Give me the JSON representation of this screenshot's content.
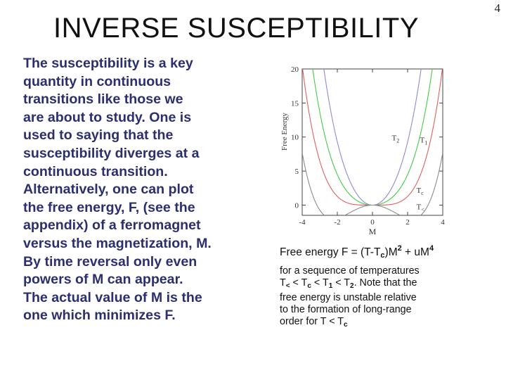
{
  "page_number": "4",
  "title": "INVERSE  SUSCEPTIBILITY",
  "body_lines": [
    "The  susceptibility  is a key",
    "quantity  in continuous",
    "transitions like those we",
    "are about to study.  One is",
    "used to saying  that the",
    "susceptibility  diverges  at a",
    "continuous  transition.",
    "Alternatively, one can plot",
    "the free energy, F, (see the",
    "appendix) of a ferromagnet",
    "versus the magnetization, M.",
    "By time reversal only even",
    "powers of M  can appear.",
    "The actual value of M is the",
    "one which minimizes  F."
  ],
  "caption": {
    "formula_pre": "Free energy F = (T-T",
    "formula_sub": "c",
    "formula_mid": ")M",
    "formula_sup2": "2",
    "formula_mid2": " + uM",
    "formula_sup4": "4",
    "line1": "for a  sequence of temperatures",
    "line2_a": "T",
    "line2_sub_lt": "<",
    "line2_b": " <  T",
    "line2_sub_c": "c",
    "line2_c": " < T",
    "line2_sub_1": "1",
    "line2_d": " < T",
    "line2_sub_2": "2",
    "line2_e": ".  Note that the",
    "line3": "free energy is  unstable  relative",
    "line4": "to the formation of long-range",
    "line5_a": "order for T < T",
    "line5_sub": "c"
  },
  "chart_data": {
    "type": "line",
    "title": "",
    "xlabel": "M",
    "ylabel": "Free  Energy",
    "xlim": [
      -4,
      4
    ],
    "ylim": [
      -1.5,
      20
    ],
    "x_ticks": [
      "-4",
      "-2",
      "0",
      "2",
      "4"
    ],
    "y_ticks": [
      "0",
      "5",
      "10",
      "15",
      "20"
    ],
    "grid": false,
    "series": [
      {
        "name": "T2",
        "color": "#8a8ad8",
        "a": 2.0,
        "u": 0.08
      },
      {
        "name": "T1",
        "color": "#44cc44",
        "a": 0.8,
        "u": 0.08
      },
      {
        "name": "Tc",
        "color": "#e06060",
        "a": 0.0,
        "u": 0.08
      },
      {
        "name": "T<",
        "color": "#8c8c8c",
        "a": -0.8,
        "u": 0.08
      }
    ],
    "curve_labels": [
      {
        "text": "T",
        "sub": "2",
        "x": 1.1,
        "y": 9.5
      },
      {
        "text": "T",
        "sub": "1",
        "x": 2.7,
        "y": 9.2
      },
      {
        "text": "T",
        "sub": "c",
        "x": 2.5,
        "y": 1.8
      },
      {
        "text": "T",
        "sub": "<",
        "x": 2.5,
        "y": -0.6
      }
    ]
  }
}
